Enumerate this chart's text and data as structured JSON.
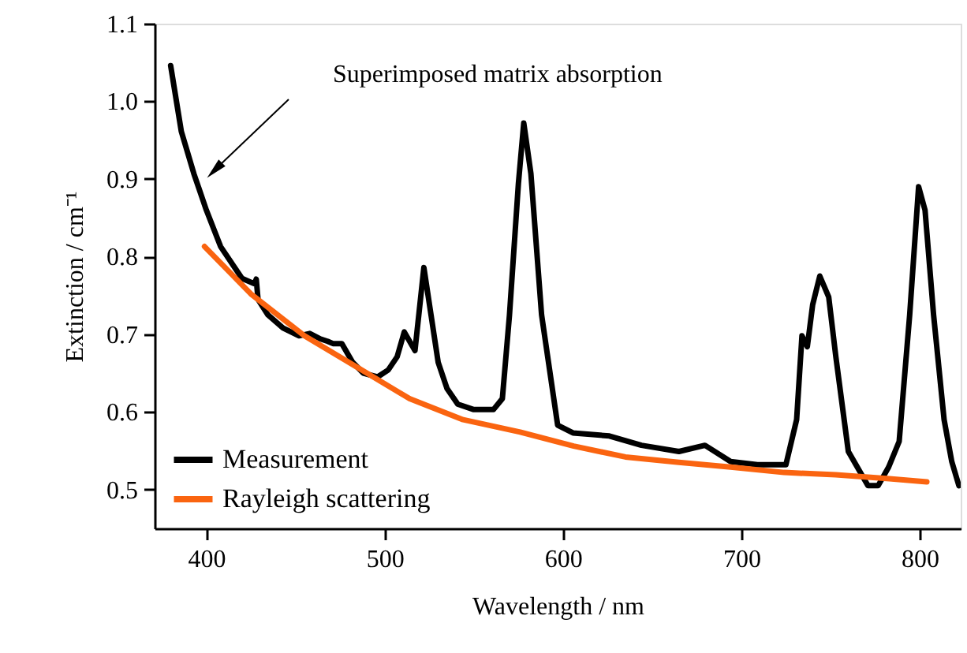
{
  "chart_data": {
    "type": "line",
    "xlabel": "Wavelength / nm",
    "ylabel": "Extinction / cm⁻¹",
    "xlim": [
      371,
      823
    ],
    "ylim": [
      0.45,
      1.1
    ],
    "xticks": [
      400,
      500,
      600,
      700,
      800
    ],
    "yticks": [
      0.5,
      0.6,
      0.7,
      0.8,
      0.9,
      {
        "value": 1.0,
        "label": "1.0"
      },
      1.1
    ],
    "grid": false,
    "legend": "bottom left",
    "line_style": "solid",
    "marker": "none",
    "annotations": [
      "Superimposed matrix absorption"
    ],
    "series": [
      {
        "name": "Measurement",
        "color": "#000000",
        "x": [
          380,
          386,
          393,
          400,
          408,
          420,
          427,
          428,
          429,
          434.5,
          443,
          452,
          458,
          464,
          468,
          471,
          476,
          482,
          488,
          496,
          502,
          507,
          511,
          514,
          517,
          522,
          526,
          530,
          535,
          541,
          550,
          561,
          566,
          570,
          575,
          578,
          582,
          588,
          597,
          605.6,
          626,
          644,
          665,
          679.6,
          694,
          709,
          725,
          731,
          734,
          737,
          740,
          744,
          749,
          753,
          760,
          771,
          776.7,
          782.6,
          788.5,
          794.4,
          799.4,
          803,
          807.8,
          813.7,
          818,
          822
        ],
        "values": [
          1.046,
          0.961,
          0.907,
          0.86,
          0.813,
          0.772,
          0.765,
          0.771,
          0.745,
          0.725,
          0.708,
          0.698,
          0.701,
          0.694,
          0.691,
          0.688,
          0.688,
          0.664,
          0.65,
          0.645,
          0.654,
          0.671,
          0.703,
          0.691,
          0.679,
          0.786,
          0.725,
          0.664,
          0.63,
          0.61,
          0.603,
          0.603,
          0.617,
          0.725,
          0.894,
          0.972,
          0.907,
          0.725,
          0.583,
          0.573,
          0.569,
          0.557,
          0.549,
          0.557,
          0.536,
          0.532,
          0.532,
          0.59,
          0.698,
          0.684,
          0.738,
          0.775,
          0.748,
          0.671,
          0.549,
          0.505,
          0.505,
          0.529,
          0.562,
          0.725,
          0.89,
          0.86,
          0.725,
          0.59,
          0.536,
          0.505
        ]
      },
      {
        "name": "Rayleigh scattering",
        "color": "#fa6410",
        "x": [
          399,
          425,
          455,
          485,
          514,
          544,
          576,
          606,
          635,
          665,
          694,
          724,
          753,
          783,
          804
        ],
        "values": [
          0.813,
          0.752,
          0.698,
          0.657,
          0.617,
          0.59,
          0.574,
          0.556,
          0.542,
          0.535,
          0.529,
          0.522,
          0.519,
          0.514,
          0.51
        ]
      }
    ]
  }
}
